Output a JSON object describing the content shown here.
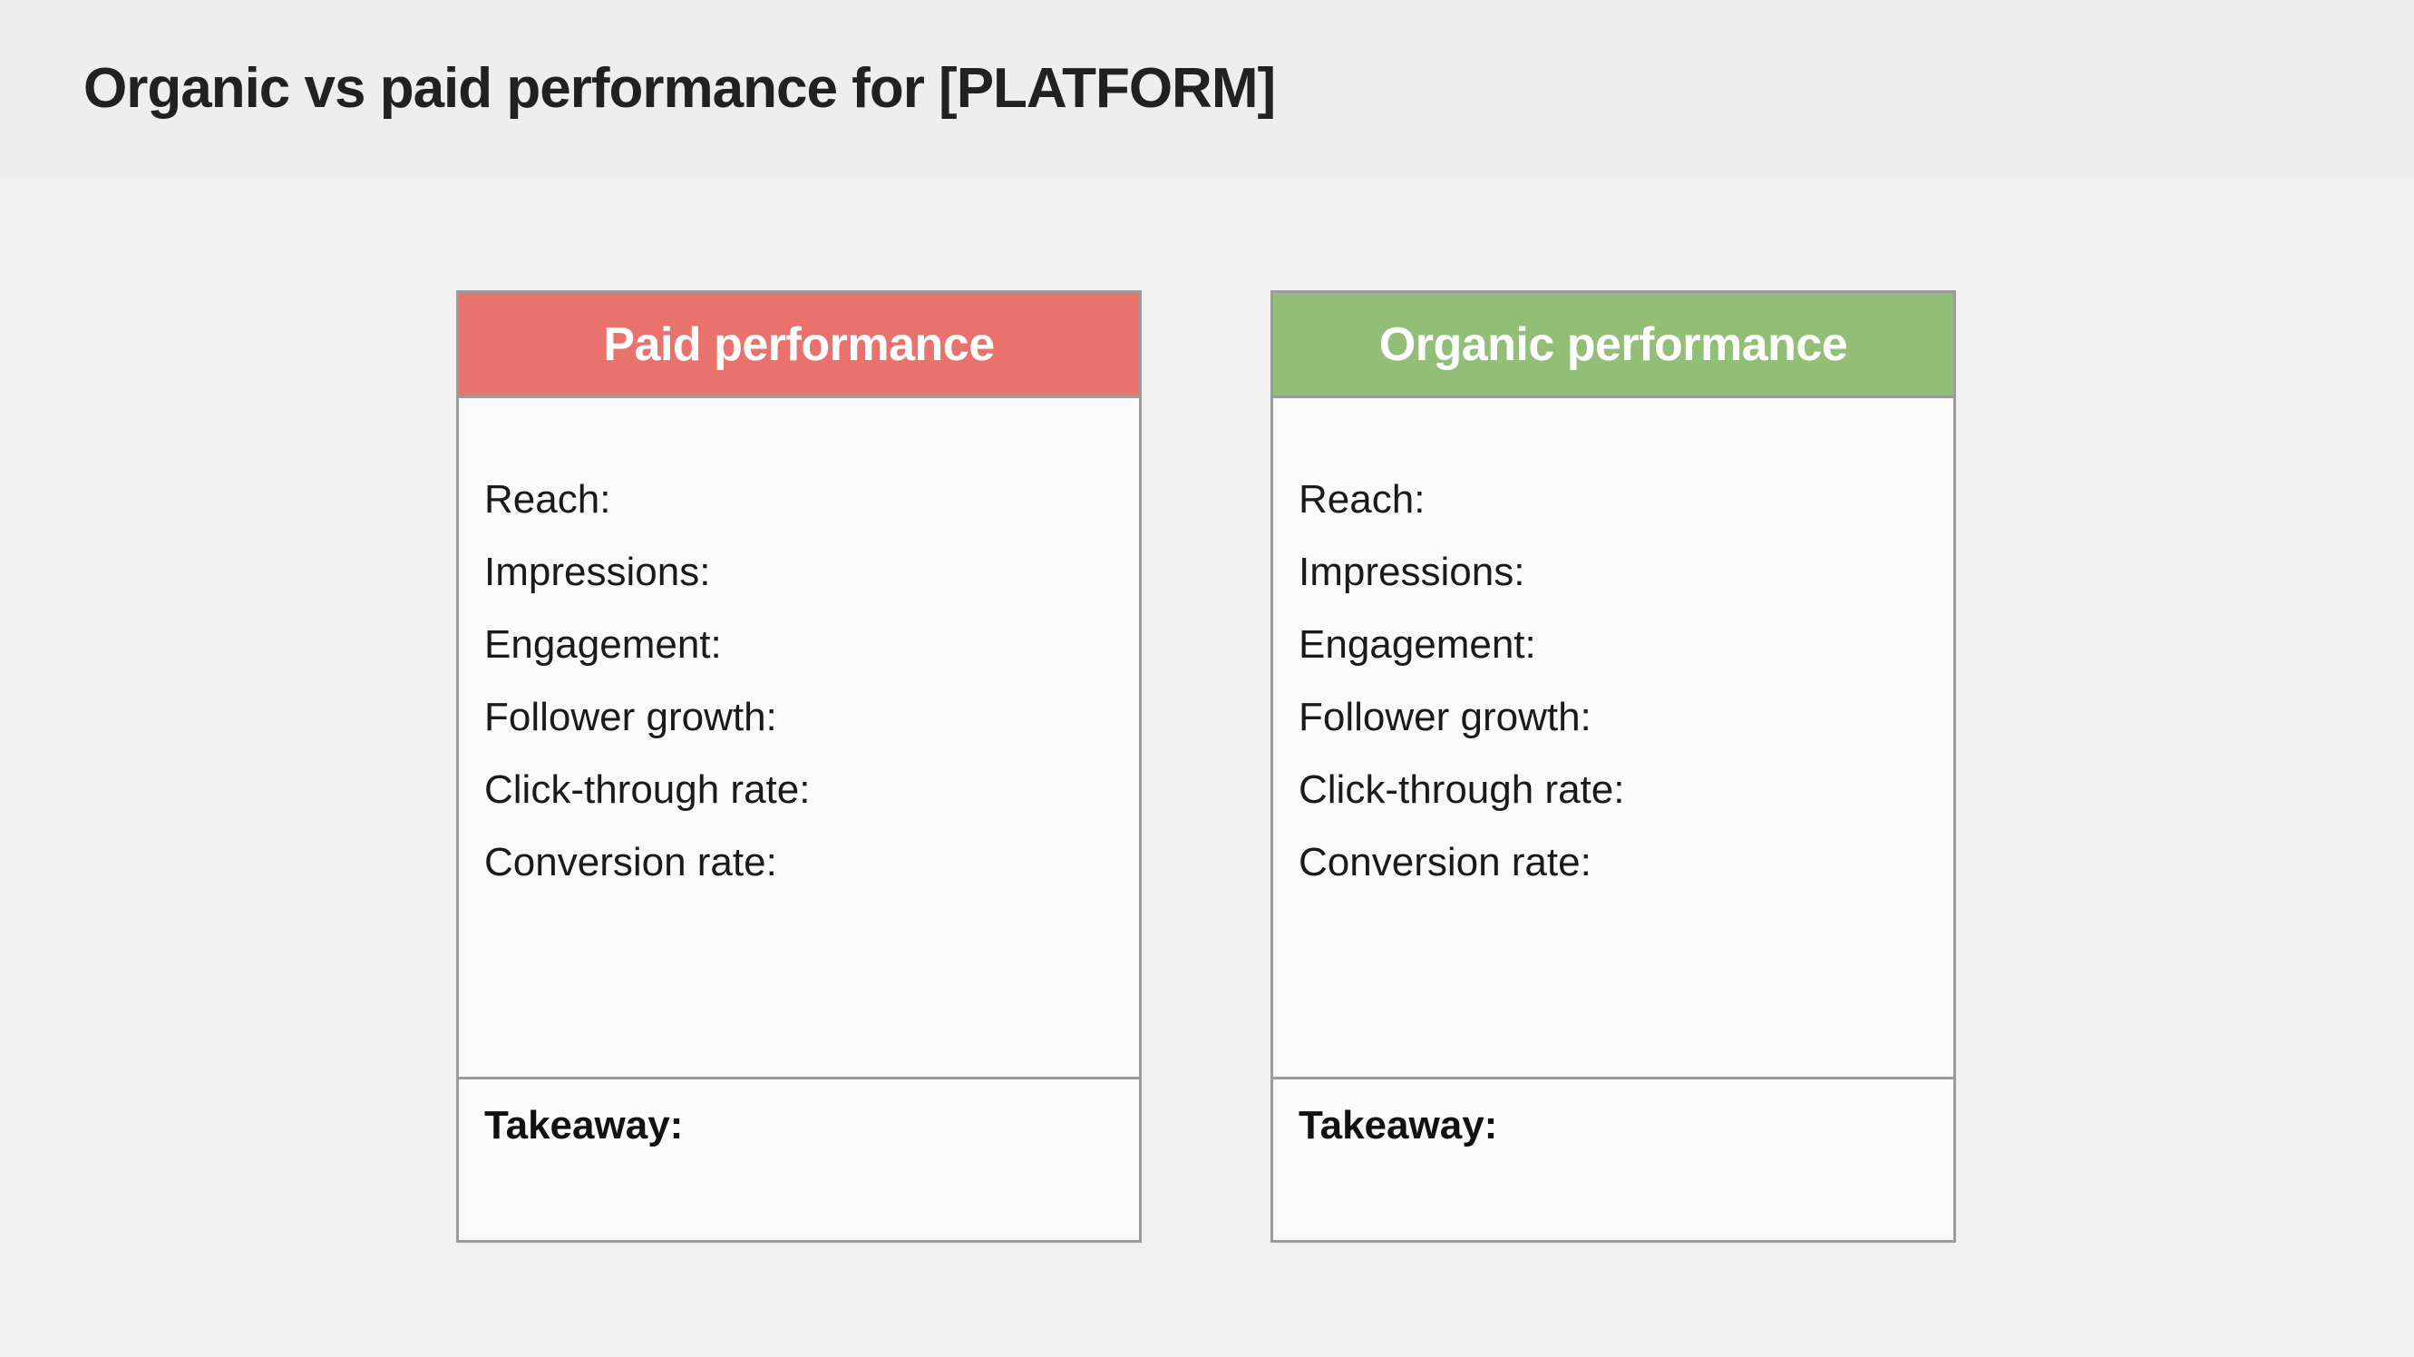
{
  "page": {
    "title": "Organic vs paid performance for [PLATFORM]"
  },
  "colors": {
    "page_background": "#f1f1f1",
    "band_background": "#eeeeef",
    "card_background": "#fafafa",
    "card_border": "#9b9b9b",
    "paid_accent": "#e9736c",
    "organic_accent": "#93be78",
    "header_text": "#ffffff",
    "body_text": "#1a1a1a"
  },
  "cards": [
    {
      "title": "Paid performance",
      "accent": "#e9736c",
      "fields": [
        "Reach:",
        "Impressions:",
        "Engagement:",
        "Follower growth:",
        "Click-through rate:",
        "Conversion rate:"
      ],
      "takeaway_label": "Takeaway:"
    },
    {
      "title": "Organic performance",
      "accent": "#93be78",
      "fields": [
        "Reach:",
        "Impressions:",
        "Engagement:",
        "Follower growth:",
        "Click-through rate:",
        "Conversion rate:"
      ],
      "takeaway_label": "Takeaway:"
    }
  ]
}
